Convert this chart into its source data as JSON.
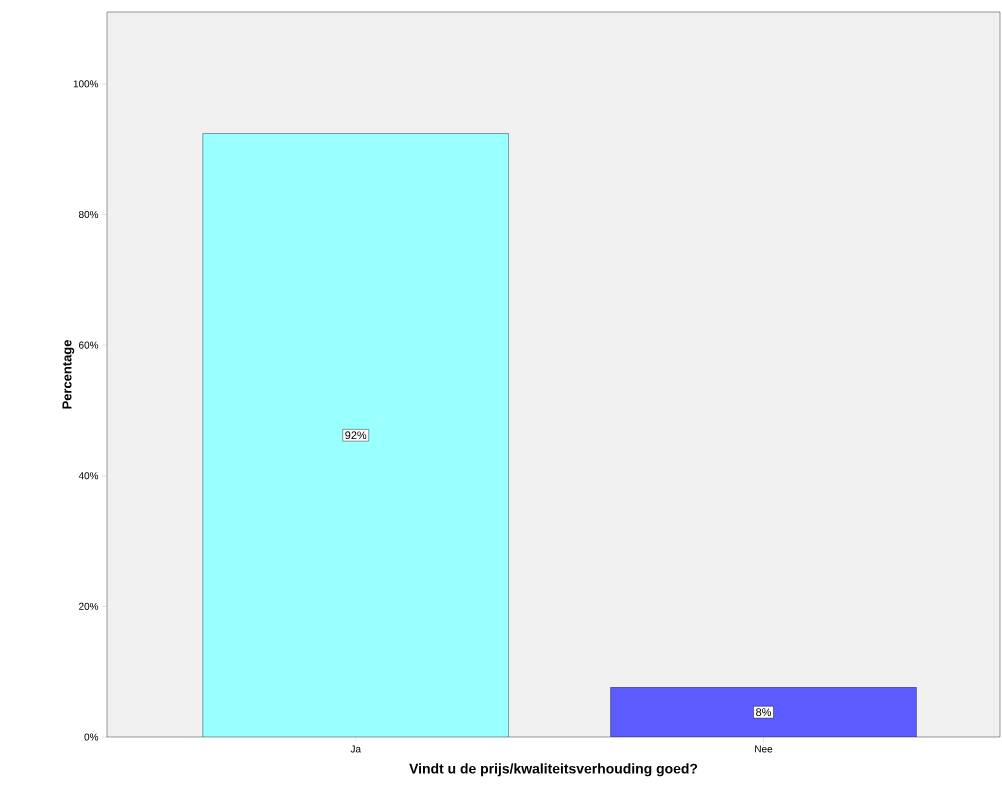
{
  "chart_data": {
    "type": "bar",
    "xlabel": "Vindt u de prijs/kwaliteitsverhouding goed?",
    "ylabel": "Percentage",
    "categories": [
      "Ja",
      "Nee"
    ],
    "values": [
      92.4,
      7.6
    ],
    "colors": [
      "#99ffff",
      "#5b5bff"
    ],
    "value_labels": [
      "92%",
      "8%"
    ],
    "ylim": [
      0,
      111
    ],
    "yticks": [
      {
        "value": 0,
        "label": "0%"
      },
      {
        "value": 20,
        "label": "20%"
      },
      {
        "value": 40,
        "label": "40%"
      },
      {
        "value": 60,
        "label": "60%"
      },
      {
        "value": 80,
        "label": "80%"
      },
      {
        "value": 100,
        "label": "100%"
      }
    ],
    "grid": false
  }
}
